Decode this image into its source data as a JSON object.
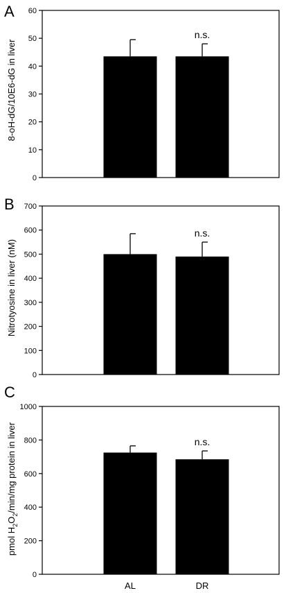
{
  "chart_data": [
    {
      "panel": "A",
      "type": "bar",
      "categories": [
        "AL",
        "DR"
      ],
      "values": [
        43.5,
        43.5
      ],
      "errors": [
        6,
        4.5
      ],
      "annotations": [
        "",
        "n.s."
      ],
      "ylabel": "8-oH-dG/10E6-dG in liver",
      "ylim": [
        0,
        60
      ],
      "yticks": [
        "0",
        "10",
        "20",
        "30",
        "40",
        "50",
        "60"
      ],
      "grid": false,
      "colors": {
        "bar": "#000000",
        "axis": "#000000"
      }
    },
    {
      "panel": "B",
      "type": "bar",
      "categories": [
        "AL",
        "DR"
      ],
      "values": [
        500,
        490
      ],
      "errors": [
        85,
        60
      ],
      "annotations": [
        "",
        "n.s."
      ],
      "ylabel": "Nitrotyosine in liver (nM)",
      "ylim": [
        0,
        700
      ],
      "yticks": [
        "0",
        "100",
        "200",
        "300",
        "400",
        "500",
        "600",
        "700"
      ],
      "grid": false,
      "colors": {
        "bar": "#000000",
        "axis": "#000000"
      }
    },
    {
      "panel": "C",
      "type": "bar",
      "categories": [
        "AL",
        "DR"
      ],
      "values": [
        725,
        685
      ],
      "errors": [
        40,
        50
      ],
      "annotations": [
        "",
        "n.s."
      ],
      "ylabel": "pmol H2O2/min/mg protein in liver",
      "ylabel_parts": {
        "pre": "pmol H",
        "sub1": "2",
        "mid": "O",
        "sub2": "2",
        "post": "/min/mg protein in liver"
      },
      "ylim": [
        0,
        1000
      ],
      "yticks": [
        "0",
        "200",
        "400",
        "600",
        "800",
        "1000"
      ],
      "xticks": [
        "AL",
        "DR"
      ],
      "grid": false,
      "colors": {
        "bar": "#000000",
        "axis": "#000000"
      }
    }
  ]
}
